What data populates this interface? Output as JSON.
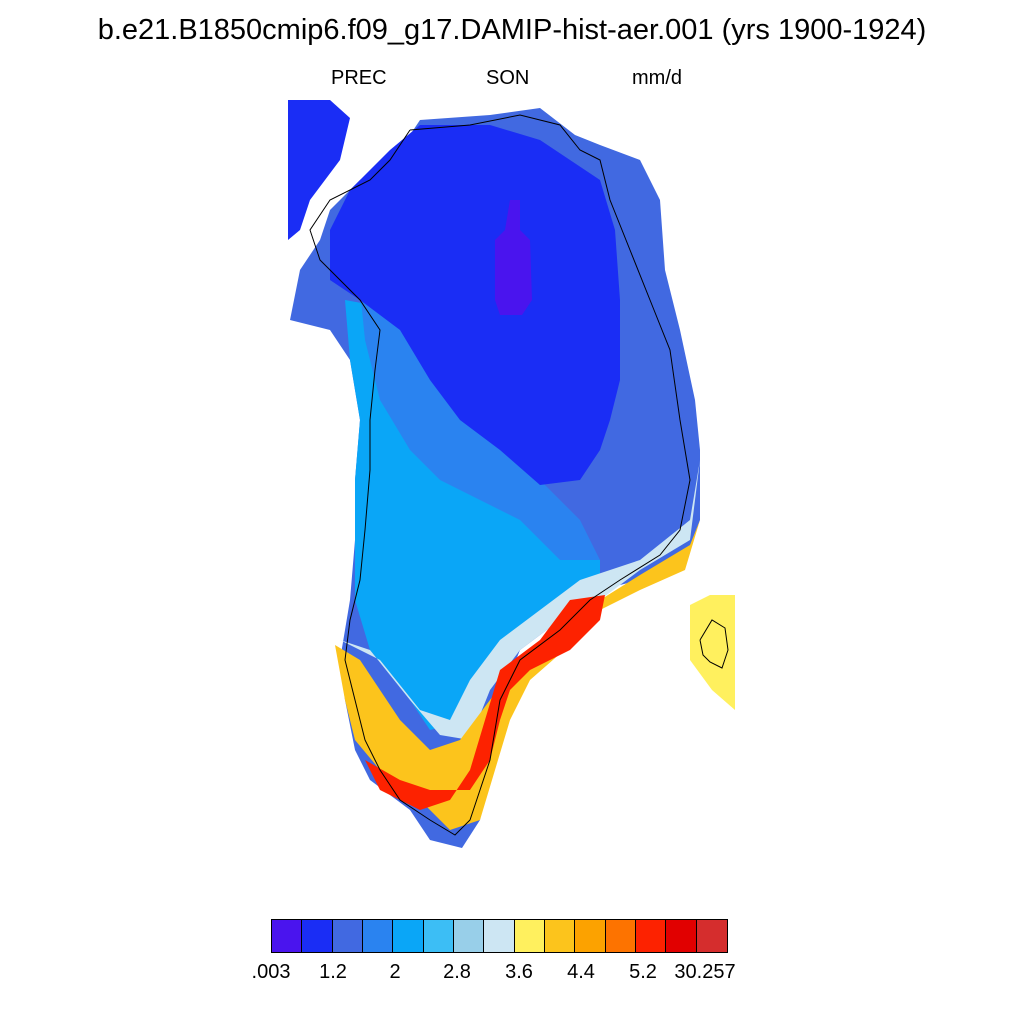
{
  "title": "b.e21.B1850cmip6.f09_g17.DAMIP-hist-aer.001 (yrs 1900-1924)",
  "subtitle": {
    "variable": "PREC",
    "season": "SON",
    "units": "mm/d"
  },
  "colorbar": {
    "colors": [
      "#4a14ee",
      "#1a2df5",
      "#4169e1",
      "#2a83f0",
      "#0aa6f7",
      "#3cbef5",
      "#98cfe9",
      "#cde6f3",
      "#fff05e",
      "#fcc41c",
      "#fca200",
      "#fd7300",
      "#fd2200",
      "#e10000",
      "#d52d2d"
    ],
    "labels": [
      ".003",
      "1.2",
      "2",
      "2.8",
      "3.6",
      "4.4",
      "5.2",
      "30.257"
    ]
  },
  "map": {
    "region": "Greenland",
    "fills": {
      "land": "#4169e1",
      "interior": "#1a2df5",
      "core": "#4a14ee",
      "coast_west": "#2a83f0",
      "southwest": "#0aa6f7",
      "south_fringe": "#cde6f3",
      "warm": "#fcc41c",
      "hot": "#fd2200",
      "iceland": "#fff05e"
    }
  }
}
